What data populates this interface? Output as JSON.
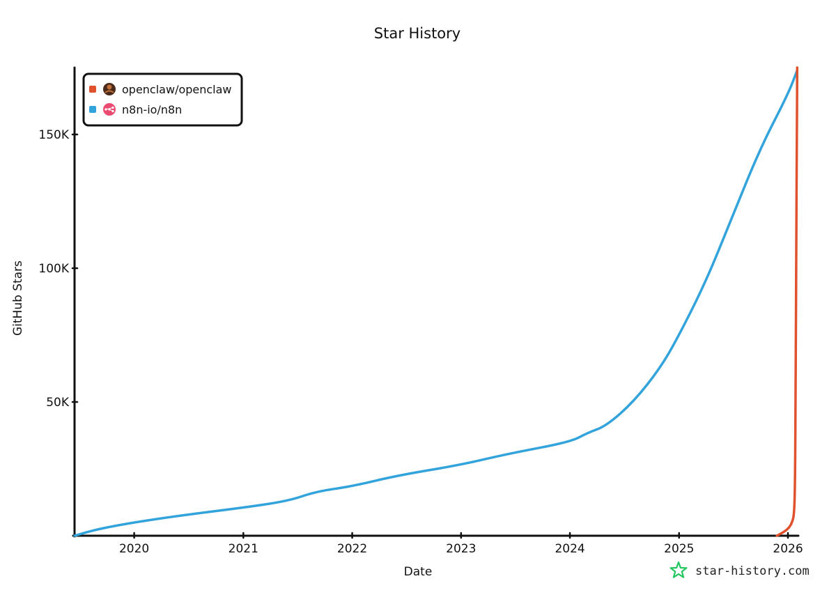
{
  "chart_data": {
    "type": "line",
    "title": "Star History",
    "xlabel": "Date",
    "ylabel": "GitHub Stars",
    "xlim": [
      "2019-06-15",
      "2026-02-05"
    ],
    "ylim": [
      0,
      175000
    ],
    "x_ticks": [
      "2020",
      "2021",
      "2022",
      "2023",
      "2024",
      "2025",
      "2026"
    ],
    "y_ticks": [
      {
        "value": 50000,
        "label": "50K"
      },
      {
        "value": 100000,
        "label": "100K"
      },
      {
        "value": 150000,
        "label": "150K"
      }
    ],
    "grid": false,
    "legend_position": "top-left",
    "series": [
      {
        "name": "openclaw/openclaw",
        "color": "#e0512e",
        "icon": "openclaw-avatar-icon",
        "points": [
          [
            "2025-11-25",
            0
          ],
          [
            "2025-12-20",
            1500
          ],
          [
            "2026-01-05",
            3000
          ],
          [
            "2026-01-15",
            5000
          ],
          [
            "2026-01-22",
            8000
          ],
          [
            "2026-01-25",
            20000
          ],
          [
            "2026-01-27",
            60000
          ],
          [
            "2026-01-29",
            110000
          ],
          [
            "2026-01-31",
            150000
          ],
          [
            "2026-02-01",
            175000
          ]
        ]
      },
      {
        "name": "n8n-io/n8n",
        "color": "#33a3dc",
        "icon": "n8n-logo-icon",
        "points": [
          [
            "2019-06-15",
            0
          ],
          [
            "2019-09-01",
            2500
          ],
          [
            "2020-01-01",
            5000
          ],
          [
            "2020-06-01",
            7500
          ],
          [
            "2021-01-01",
            10500
          ],
          [
            "2021-06-01",
            13000
          ],
          [
            "2021-09-01",
            16500
          ],
          [
            "2022-01-01",
            18500
          ],
          [
            "2022-06-01",
            22500
          ],
          [
            "2023-01-01",
            26500
          ],
          [
            "2023-06-01",
            30500
          ],
          [
            "2024-01-01",
            35000
          ],
          [
            "2024-03-01",
            38500
          ],
          [
            "2024-05-01",
            41000
          ],
          [
            "2024-08-01",
            50000
          ],
          [
            "2024-11-01",
            63000
          ],
          [
            "2025-01-01",
            75000
          ],
          [
            "2025-04-01",
            95000
          ],
          [
            "2025-07-01",
            120000
          ],
          [
            "2025-10-01",
            145000
          ],
          [
            "2026-01-01",
            165000
          ],
          [
            "2026-02-01",
            174000
          ]
        ]
      }
    ]
  },
  "brand": {
    "text": "star-history.com",
    "icon": "star-history-logo-icon",
    "color": "#22c55e"
  }
}
